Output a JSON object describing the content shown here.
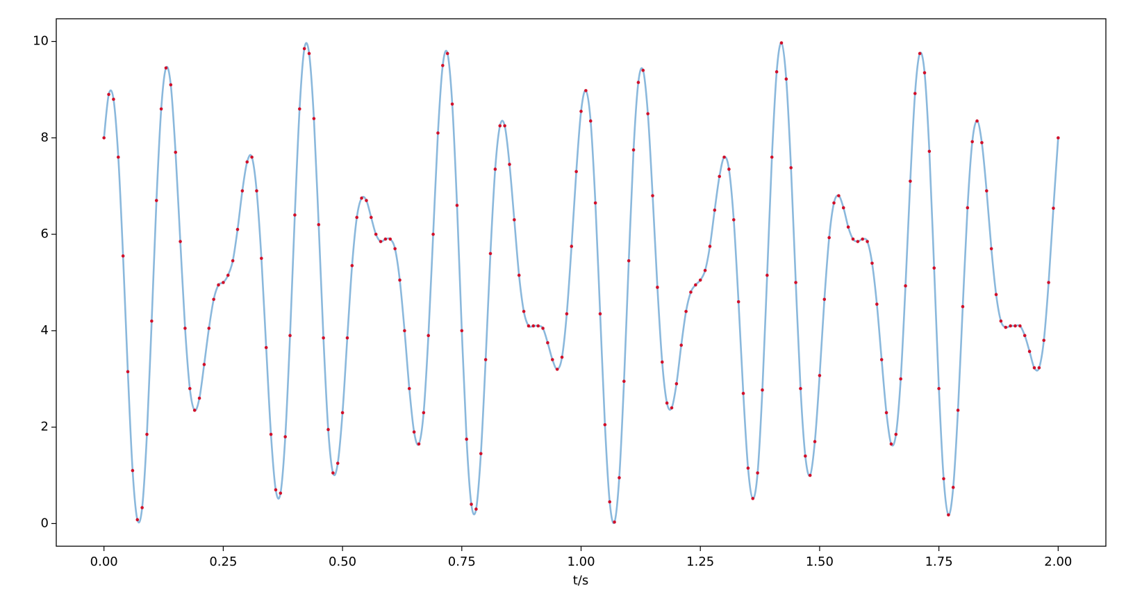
{
  "chart_data": {
    "type": "line",
    "xlabel": "t/s",
    "x": [
      0,
      0.01,
      0.02,
      0.03,
      0.04,
      0.05,
      0.06,
      0.07,
      0.08,
      0.09,
      0.1,
      0.11,
      0.12,
      0.13,
      0.14,
      0.15,
      0.16,
      0.17,
      0.18,
      0.19,
      0.2,
      0.21,
      0.22,
      0.23,
      0.24,
      0.25,
      0.26,
      0.27,
      0.28,
      0.29,
      0.3,
      0.31,
      0.32,
      0.33,
      0.34,
      0.35,
      0.36,
      0.37,
      0.38,
      0.39,
      0.4,
      0.41,
      0.42,
      0.43,
      0.44,
      0.45,
      0.46,
      0.47,
      0.48,
      0.49,
      0.5,
      0.51,
      0.52,
      0.53,
      0.54,
      0.55,
      0.56,
      0.57,
      0.58,
      0.59,
      0.6,
      0.61,
      0.62,
      0.63,
      0.64,
      0.65,
      0.66,
      0.67,
      0.68,
      0.69,
      0.7,
      0.71,
      0.72,
      0.73,
      0.74,
      0.75,
      0.76,
      0.77,
      0.78,
      0.79,
      0.8,
      0.81,
      0.82,
      0.83,
      0.84,
      0.85,
      0.86,
      0.87,
      0.88,
      0.89,
      0.9,
      0.91,
      0.92,
      0.93,
      0.94,
      0.95,
      0.96,
      0.97,
      0.98,
      0.99,
      1,
      1.01,
      1.02,
      1.03,
      1.04,
      1.05,
      1.06,
      1.07,
      1.08,
      1.09,
      1.1,
      1.11,
      1.12,
      1.13,
      1.14,
      1.15,
      1.16,
      1.17,
      1.18,
      1.19,
      1.2,
      1.21,
      1.22,
      1.23,
      1.24,
      1.25,
      1.26,
      1.27,
      1.28,
      1.29,
      1.3,
      1.31,
      1.32,
      1.33,
      1.34,
      1.35,
      1.36,
      1.37,
      1.38,
      1.39,
      1.4,
      1.41,
      1.42,
      1.43,
      1.44,
      1.45,
      1.46,
      1.47,
      1.48,
      1.49,
      1.5,
      1.51,
      1.52,
      1.53,
      1.54,
      1.55,
      1.56,
      1.57,
      1.58,
      1.59,
      1.6,
      1.61,
      1.62,
      1.63,
      1.64,
      1.65,
      1.66,
      1.67,
      1.68,
      1.69,
      1.7,
      1.71,
      1.72,
      1.73,
      1.74,
      1.75,
      1.76,
      1.77,
      1.78,
      1.79,
      1.8,
      1.81,
      1.82,
      1.83,
      1.84,
      1.85,
      1.86,
      1.87,
      1.88,
      1.89,
      1.9,
      1.91,
      1.92,
      1.93,
      1.94,
      1.95,
      1.96,
      1.97,
      1.98,
      1.99,
      2
    ],
    "series": [
      {
        "color": "#8ab8dc",
        "marker_color": "#d0102a",
        "values": [
          8.0,
          8.9,
          8.8,
          7.6,
          5.55,
          3.15,
          1.1,
          0.08,
          0.33,
          1.85,
          4.2,
          6.7,
          8.6,
          9.45,
          9.1,
          7.7,
          5.85,
          4.05,
          2.8,
          2.35,
          2.6,
          3.3,
          4.05,
          4.65,
          4.95,
          5.0,
          5.15,
          5.45,
          6.1,
          6.9,
          7.5,
          7.6,
          6.9,
          5.5,
          3.65,
          1.85,
          0.7,
          0.63,
          1.8,
          3.9,
          6.4,
          8.6,
          9.85,
          9.75,
          8.4,
          6.2,
          3.85,
          1.95,
          1.05,
          1.25,
          2.3,
          3.85,
          5.35,
          6.35,
          6.75,
          6.7,
          6.35,
          6.0,
          5.85,
          5.9,
          5.9,
          5.7,
          5.05,
          4.0,
          2.8,
          1.9,
          1.65,
          2.3,
          3.9,
          6.0,
          8.1,
          9.5,
          9.75,
          8.7,
          6.6,
          4.0,
          1.75,
          0.4,
          0.3,
          1.45,
          3.4,
          5.6,
          7.35,
          8.25,
          8.25,
          7.45,
          6.3,
          5.15,
          4.4,
          4.1,
          4.1,
          4.1,
          4.05,
          3.75,
          3.4,
          3.2,
          3.45,
          4.35,
          5.75,
          7.3,
          8.55,
          8.98,
          8.35,
          6.65,
          4.35,
          2.05,
          0.45,
          0.03,
          0.95,
          2.95,
          5.45,
          7.75,
          9.15,
          9.4,
          8.5,
          6.8,
          4.9,
          3.35,
          2.5,
          2.4,
          2.9,
          3.7,
          4.4,
          4.8,
          4.95,
          5.05,
          5.25,
          5.75,
          6.5,
          7.2,
          7.6,
          7.35,
          6.3,
          4.6,
          2.7,
          1.15,
          0.52,
          1.05,
          2.77,
          5.15,
          7.6,
          9.37,
          9.97,
          9.22,
          7.38,
          5.0,
          2.8,
          1.4,
          1.0,
          1.7,
          3.07,
          4.65,
          5.93,
          6.65,
          6.8,
          6.55,
          6.15,
          5.9,
          5.85,
          5.9,
          5.85,
          5.4,
          4.55,
          3.4,
          2.3,
          1.65,
          1.85,
          3.0,
          4.93,
          7.1,
          8.92,
          9.75,
          9.35,
          7.72,
          5.3,
          2.8,
          0.93,
          0.18,
          0.75,
          2.35,
          4.5,
          6.55,
          7.92,
          8.35,
          7.9,
          6.9,
          5.7,
          4.75,
          4.2,
          4.07,
          4.1,
          4.1,
          4.1,
          3.9,
          3.57,
          3.23,
          3.23,
          3.8,
          5.0,
          6.54,
          8.0
        ]
      }
    ],
    "xlim": [
      -0.1,
      2.1
    ],
    "xticks": [
      {
        "value": 0,
        "label": "0.00"
      },
      {
        "value": 0.25,
        "label": "0.25"
      },
      {
        "value": 0.5,
        "label": "0.50"
      },
      {
        "value": 0.75,
        "label": "0.75"
      },
      {
        "value": 1,
        "label": "1.00"
      },
      {
        "value": 1.25,
        "label": "1.25"
      },
      {
        "value": 1.5,
        "label": "1.50"
      },
      {
        "value": 1.75,
        "label": "1.75"
      },
      {
        "value": 2,
        "label": "2.00"
      }
    ],
    "ylim": [
      -0.47,
      10.47
    ],
    "yticks": [
      0,
      2,
      4,
      6,
      8,
      10
    ]
  }
}
